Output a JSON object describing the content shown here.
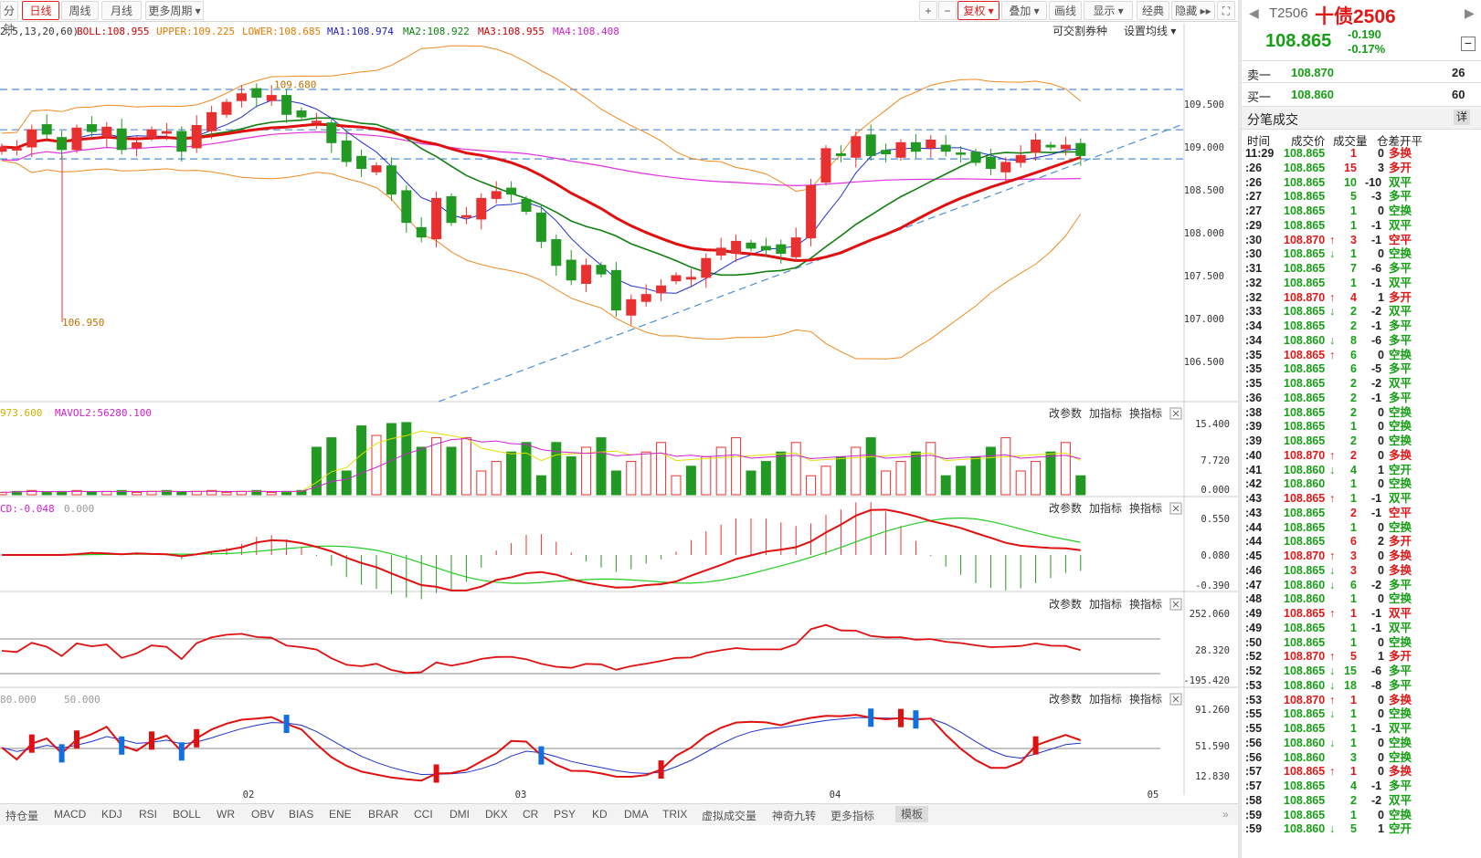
{
  "toolbar": {
    "left_tabs": [
      "分钟",
      "日线",
      "周线",
      "月线",
      "更多周期 ▾"
    ],
    "active_tab": "日线",
    "right_buttons": [
      "+",
      "−",
      "复权 ▾",
      "叠加 ▾",
      "画线",
      "显示 ▾",
      "经典",
      "隐藏 ▸▸",
      "⛶"
    ]
  },
  "indicators": {
    "main_params": "2,5,13,20,60)",
    "boll": "BOLL:108.955",
    "upper": "UPPER:109.225",
    "lower": "LOWER:108.685",
    "ma1": "MA1:108.974",
    "ma2": "MA2:108.922",
    "ma3": "MA3:108.955",
    "ma4": "MA4:108.408",
    "tradable": "可交割券种",
    "ma_setting": "设置均线 ▾",
    "vol_legend1": "973.600",
    "vol_legend2": "MAVOL2:56280.100",
    "macd_legend": "CD:-0.048",
    "macd_legend2": "0.000",
    "kdj_legend": "80.000",
    "kdj_legend2": "50.000",
    "sub_btn_params": "改参数",
    "sub_btn_add": "加指标",
    "sub_btn_swap": "换指标"
  },
  "price_axis": [
    "109.500",
    "109.000",
    "108.500",
    "108.000",
    "107.500",
    "107.000",
    "106.500"
  ],
  "vol_axis": [
    "15.400",
    "7.720",
    "0.000"
  ],
  "macd_axis": [
    "0.550",
    "0.080",
    "-0.390"
  ],
  "cci_axis": [
    "252.060",
    "28.320",
    "-195.420"
  ],
  "kdj_axis": [
    "91.260",
    "51.590",
    "12.830"
  ],
  "annotations": {
    "high": "109.680",
    "low": "106.950"
  },
  "date_labels": [
    "02",
    "03",
    "04",
    "05"
  ],
  "bottom_tabs": [
    "持仓量",
    "MACD",
    "KDJ",
    "RSI",
    "BOLL",
    "WR",
    "OBV",
    "BIAS",
    "ENE",
    "BRAR",
    "CCI",
    "DMI",
    "DKX",
    "CR",
    "PSY",
    "KD",
    "DMA",
    "TRIX",
    "虚拟成交量",
    "神奇九转",
    "更多指标",
    "模板"
  ],
  "bottom_selected": "模板",
  "quote": {
    "code": "T2506",
    "name": "十债2506",
    "price": "108.865",
    "change": "-0.190",
    "change_pct": "-0.17%",
    "sell_label": "卖一",
    "sell_price": "108.870",
    "sell_vol": "26",
    "buy_label": "买一",
    "buy_price": "108.860",
    "buy_vol": "60",
    "ticks_title": "分笔成交",
    "detail_btn": "详",
    "col_time": "时间",
    "col_price": "成交价",
    "col_vol": "成交量",
    "col_oi": "仓差",
    "col_type": "开平"
  },
  "ticks": [
    {
      "t": "11:29",
      "p": "108.865",
      "a": "",
      "v": "1",
      "o": "0",
      "k": "多换",
      "c": "r"
    },
    {
      "t": ":26",
      "p": "108.865",
      "a": "",
      "v": "15",
      "o": "3",
      "k": "多开",
      "c": "r"
    },
    {
      "t": ":26",
      "p": "108.865",
      "a": "",
      "v": "10",
      "o": "-10",
      "k": "双平",
      "c": "g"
    },
    {
      "t": ":27",
      "p": "108.865",
      "a": "",
      "v": "5",
      "o": "-3",
      "k": "多平",
      "c": "g"
    },
    {
      "t": ":27",
      "p": "108.865",
      "a": "",
      "v": "1",
      "o": "0",
      "k": "空换",
      "c": "g"
    },
    {
      "t": ":29",
      "p": "108.865",
      "a": "",
      "v": "1",
      "o": "-1",
      "k": "双平",
      "c": "g"
    },
    {
      "t": ":30",
      "p": "108.870",
      "a": "↑",
      "v": "3",
      "o": "-1",
      "k": "空平",
      "c": "r"
    },
    {
      "t": ":30",
      "p": "108.865",
      "a": "↓",
      "v": "1",
      "o": "0",
      "k": "空换",
      "c": "g"
    },
    {
      "t": ":31",
      "p": "108.865",
      "a": "",
      "v": "7",
      "o": "-6",
      "k": "多平",
      "c": "g"
    },
    {
      "t": ":32",
      "p": "108.865",
      "a": "",
      "v": "1",
      "o": "-1",
      "k": "双平",
      "c": "g"
    },
    {
      "t": ":32",
      "p": "108.870",
      "a": "↑",
      "v": "4",
      "o": "1",
      "k": "多开",
      "c": "r"
    },
    {
      "t": ":33",
      "p": "108.865",
      "a": "↓",
      "v": "2",
      "o": "-2",
      "k": "双平",
      "c": "g"
    },
    {
      "t": ":34",
      "p": "108.865",
      "a": "",
      "v": "2",
      "o": "-1",
      "k": "多平",
      "c": "g"
    },
    {
      "t": ":34",
      "p": "108.860",
      "a": "↓",
      "v": "8",
      "o": "-6",
      "k": "多平",
      "c": "g"
    },
    {
      "t": ":35",
      "p": "108.865",
      "a": "↑",
      "v": "6",
      "o": "0",
      "k": "空换",
      "c": "g"
    },
    {
      "t": ":35",
      "p": "108.865",
      "a": "",
      "v": "6",
      "o": "-5",
      "k": "多平",
      "c": "g"
    },
    {
      "t": ":35",
      "p": "108.865",
      "a": "",
      "v": "2",
      "o": "-2",
      "k": "双平",
      "c": "g"
    },
    {
      "t": ":36",
      "p": "108.865",
      "a": "",
      "v": "2",
      "o": "-1",
      "k": "多平",
      "c": "g"
    },
    {
      "t": ":38",
      "p": "108.865",
      "a": "",
      "v": "2",
      "o": "0",
      "k": "空换",
      "c": "g"
    },
    {
      "t": ":39",
      "p": "108.865",
      "a": "",
      "v": "1",
      "o": "0",
      "k": "空换",
      "c": "g"
    },
    {
      "t": ":39",
      "p": "108.865",
      "a": "",
      "v": "2",
      "o": "0",
      "k": "空换",
      "c": "g"
    },
    {
      "t": ":40",
      "p": "108.870",
      "a": "↑",
      "v": "2",
      "o": "0",
      "k": "多换",
      "c": "r"
    },
    {
      "t": ":41",
      "p": "108.860",
      "a": "↓",
      "v": "4",
      "o": "1",
      "k": "空开",
      "c": "g"
    },
    {
      "t": ":42",
      "p": "108.860",
      "a": "",
      "v": "1",
      "o": "0",
      "k": "空换",
      "c": "g"
    },
    {
      "t": ":43",
      "p": "108.865",
      "a": "↑",
      "v": "1",
      "o": "-1",
      "k": "双平",
      "c": "g"
    },
    {
      "t": ":43",
      "p": "108.865",
      "a": "",
      "v": "2",
      "o": "-1",
      "k": "空平",
      "c": "r"
    },
    {
      "t": ":44",
      "p": "108.865",
      "a": "",
      "v": "1",
      "o": "0",
      "k": "空换",
      "c": "g"
    },
    {
      "t": ":44",
      "p": "108.865",
      "a": "",
      "v": "6",
      "o": "2",
      "k": "多开",
      "c": "r"
    },
    {
      "t": ":45",
      "p": "108.870",
      "a": "↑",
      "v": "3",
      "o": "0",
      "k": "多换",
      "c": "r"
    },
    {
      "t": ":46",
      "p": "108.865",
      "a": "↓",
      "v": "3",
      "o": "0",
      "k": "多换",
      "c": "r"
    },
    {
      "t": ":47",
      "p": "108.860",
      "a": "↓",
      "v": "6",
      "o": "-2",
      "k": "多平",
      "c": "g"
    },
    {
      "t": ":48",
      "p": "108.860",
      "a": "",
      "v": "1",
      "o": "0",
      "k": "空换",
      "c": "g"
    },
    {
      "t": ":49",
      "p": "108.865",
      "a": "↑",
      "v": "1",
      "o": "-1",
      "k": "双平",
      "c": "r"
    },
    {
      "t": ":49",
      "p": "108.865",
      "a": "",
      "v": "1",
      "o": "-1",
      "k": "双平",
      "c": "g"
    },
    {
      "t": ":50",
      "p": "108.865",
      "a": "",
      "v": "1",
      "o": "0",
      "k": "空换",
      "c": "g"
    },
    {
      "t": ":52",
      "p": "108.870",
      "a": "↑",
      "v": "5",
      "o": "1",
      "k": "多开",
      "c": "r"
    },
    {
      "t": ":52",
      "p": "108.865",
      "a": "↓",
      "v": "15",
      "o": "-6",
      "k": "多平",
      "c": "g"
    },
    {
      "t": ":53",
      "p": "108.860",
      "a": "↓",
      "v": "18",
      "o": "-8",
      "k": "多平",
      "c": "g"
    },
    {
      "t": ":53",
      "p": "108.870",
      "a": "↑",
      "v": "1",
      "o": "0",
      "k": "多换",
      "c": "r"
    },
    {
      "t": ":55",
      "p": "108.865",
      "a": "↓",
      "v": "1",
      "o": "0",
      "k": "空换",
      "c": "g"
    },
    {
      "t": ":55",
      "p": "108.865",
      "a": "",
      "v": "1",
      "o": "-1",
      "k": "双平",
      "c": "g"
    },
    {
      "t": ":56",
      "p": "108.860",
      "a": "↓",
      "v": "1",
      "o": "0",
      "k": "空换",
      "c": "g"
    },
    {
      "t": ":56",
      "p": "108.860",
      "a": "",
      "v": "3",
      "o": "0",
      "k": "空换",
      "c": "g"
    },
    {
      "t": ":57",
      "p": "108.865",
      "a": "↑",
      "v": "1",
      "o": "0",
      "k": "多换",
      "c": "r"
    },
    {
      "t": ":57",
      "p": "108.865",
      "a": "",
      "v": "4",
      "o": "-1",
      "k": "多平",
      "c": "g"
    },
    {
      "t": ":58",
      "p": "108.865",
      "a": "",
      "v": "2",
      "o": "-2",
      "k": "双平",
      "c": "g"
    },
    {
      "t": ":59",
      "p": "108.865",
      "a": "",
      "v": "1",
      "o": "0",
      "k": "空换",
      "c": "g"
    },
    {
      "t": ":59",
      "p": "108.860",
      "a": "↓",
      "v": "5",
      "o": "1",
      "k": "空开",
      "c": "g"
    }
  ],
  "chart_data": {
    "type": "candlestick",
    "closes": [
      109.0,
      108.98,
      109.2,
      109.15,
      108.97,
      109.22,
      109.18,
      109.23,
      108.97,
      109.05,
      109.2,
      109.18,
      108.95,
      109.25,
      109.4,
      109.52,
      109.62,
      109.58,
      109.6,
      109.38,
      109.35,
      109.3,
      109.05,
      108.83,
      108.75,
      108.78,
      108.45,
      108.12,
      107.95,
      108.4,
      108.12,
      108.2,
      108.4,
      108.48,
      108.45,
      108.25,
      107.9,
      107.62,
      107.45,
      107.62,
      107.52,
      107.1,
      107.22,
      107.28,
      107.38,
      107.5,
      107.48,
      107.7,
      107.82,
      107.9,
      107.82,
      107.8,
      107.76,
      107.94,
      108.55,
      108.98,
      108.9,
      109.12,
      108.9,
      108.92,
      109.05,
      108.95,
      109.08,
      108.95,
      108.92,
      108.82,
      108.75,
      108.82,
      108.9,
      109.08,
      109.0,
      109.02,
      108.9
    ]
  }
}
